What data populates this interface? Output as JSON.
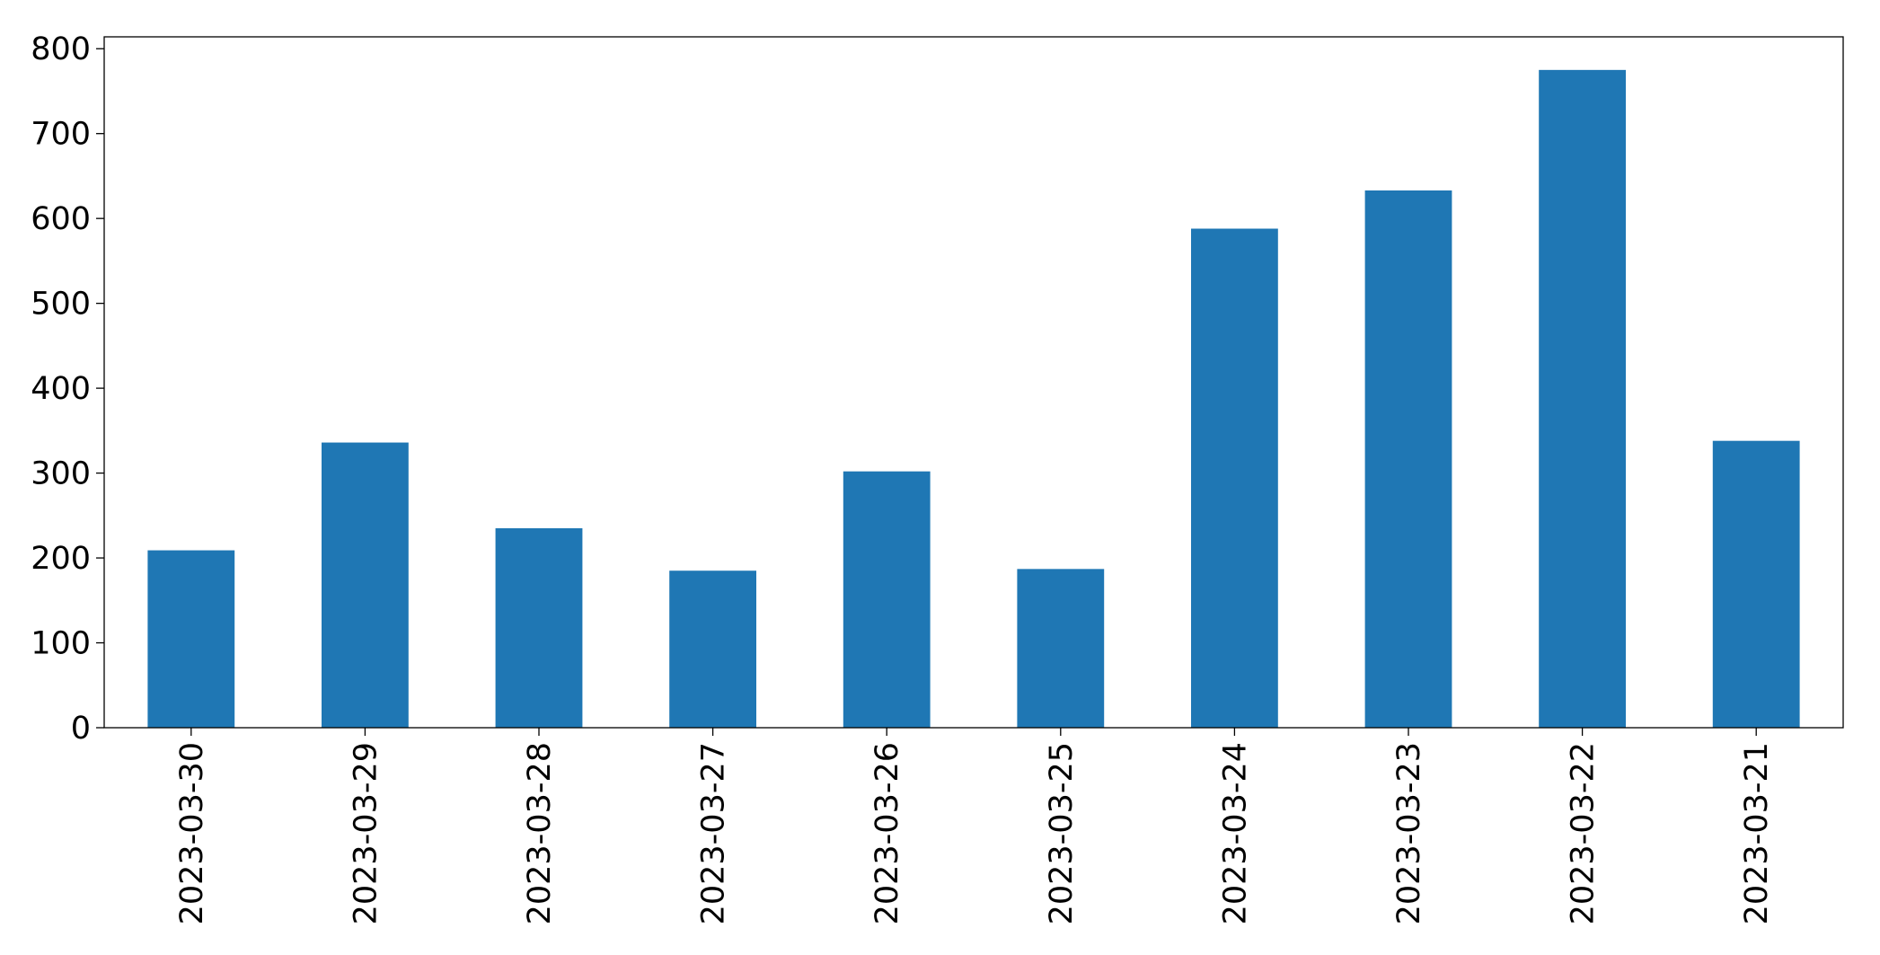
{
  "chart_data": {
    "type": "bar",
    "categories": [
      "2023-03-30",
      "2023-03-29",
      "2023-03-28",
      "2023-03-27",
      "2023-03-26",
      "2023-03-25",
      "2023-03-24",
      "2023-03-23",
      "2023-03-22",
      "2023-03-21"
    ],
    "values": [
      209,
      336,
      235,
      185,
      302,
      187,
      588,
      633,
      775,
      338
    ],
    "color": "#1f77b4",
    "ylim": [
      0,
      814
    ],
    "yticks": [
      0,
      100,
      200,
      300,
      400,
      500,
      600,
      700,
      800
    ],
    "grid": false
  }
}
